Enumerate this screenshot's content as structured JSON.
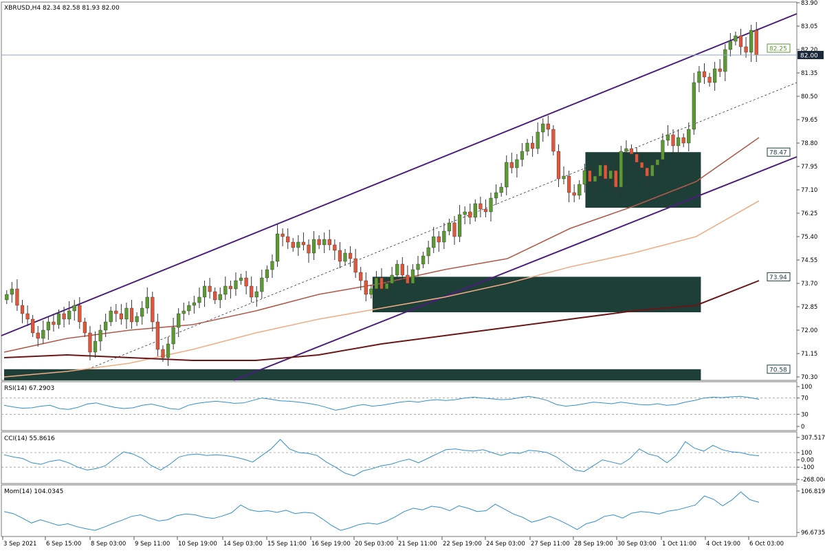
{
  "header": {
    "symbol_line": "XBRUSD,H4  82.34 82.58 81.93 82.00"
  },
  "colors": {
    "bull": "#5b9a32",
    "bear": "#e0563a",
    "channel": "#4b1e7e",
    "zone_fill": "#1d3f37",
    "ma_fast": "#b15b4a",
    "ma_mid": "#f0ad86",
    "ma_slow": "#6a1616",
    "indicator": "#2f8fcf",
    "price_line": "#8aa6c8"
  },
  "chart_data": [
    {
      "type": "candlestick",
      "title": "XBRUSD,H4",
      "ohlc_header": {
        "open": 82.34,
        "high": 82.58,
        "low": 81.93,
        "close": 82.0
      },
      "ylim": [
        70.3,
        83.9
      ],
      "y_ticks": [
        "83.90",
        "83.05",
        "82.20",
        "81.35",
        "80.50",
        "79.65",
        "78.80",
        "77.95",
        "77.10",
        "76.25",
        "75.40",
        "74.55",
        "73.70",
        "72.85",
        "72.00",
        "71.15",
        "70.30"
      ],
      "current_price": "82.00",
      "price_tags": [
        "82.25",
        "78.47",
        "73.94",
        "70.58"
      ],
      "x_labels": [
        "3 Sep 2021",
        "6 Sep 15:00",
        "8 Sep 03:00",
        "9 Sep 11:00",
        "10 Sep 19:00",
        "14 Sep 03:00",
        "15 Sep 11:00",
        "16 Sep 19:00",
        "20 Sep 03:00",
        "21 Sep 11:00",
        "22 Sep 19:00",
        "24 Sep 03:00",
        "27 Sep 11:00",
        "28 Sep 19:00",
        "30 Sep 03:00",
        "1 Oct 11:00",
        "4 Oct 19:00",
        "6 Oct 03:00"
      ],
      "closes": [
        73.3,
        73.5,
        72.9,
        72.6,
        72.4,
        71.9,
        71.7,
        72.0,
        72.3,
        72.2,
        72.6,
        72.4,
        72.7,
        72.9,
        72.3,
        71.9,
        71.2,
        71.6,
        72.0,
        72.3,
        72.7,
        72.6,
        72.4,
        72.8,
        72.3,
        72.5,
        72.8,
        73.2,
        72.3,
        71.3,
        71.0,
        71.5,
        72.1,
        72.6,
        72.7,
        72.9,
        73.0,
        73.2,
        73.6,
        73.4,
        73.1,
        73.3,
        73.6,
        73.5,
        73.8,
        73.9,
        73.6,
        73.2,
        73.4,
        73.9,
        74.2,
        74.5,
        75.5,
        75.4,
        75.2,
        75.0,
        75.2,
        75.1,
        74.8,
        75.3,
        75.1,
        75.3,
        75.1,
        74.9,
        74.5,
        74.8,
        74.6,
        74.1,
        73.8,
        73.3,
        73.5,
        73.9,
        73.5,
        73.7,
        74.0,
        74.4,
        74.0,
        73.7,
        74.2,
        74.4,
        74.7,
        75.0,
        75.4,
        75.2,
        75.6,
        75.9,
        75.4,
        76.2,
        76.3,
        76.1,
        76.6,
        76.4,
        76.3,
        76.8,
        77.0,
        77.2,
        78.1,
        77.9,
        78.2,
        78.5,
        78.8,
        78.6,
        79.2,
        79.5,
        79.3,
        78.5,
        77.5,
        77.6,
        77.0,
        76.9,
        77.3,
        77.8,
        77.4,
        77.6,
        78.0,
        77.5,
        77.8,
        77.2,
        78.5,
        78.6,
        78.4,
        78.1,
        77.9,
        77.6,
        78.0,
        78.2,
        78.9,
        79.1,
        78.7,
        79.0,
        78.8,
        79.3,
        81.0,
        81.4,
        81.2,
        81.0,
        81.5,
        81.4,
        82.2,
        82.5,
        82.7,
        82.3,
        82.1,
        82.9,
        82.0
      ],
      "moving_averages": [
        {
          "key": "ma_fast",
          "values": [
            71.2,
            71.7,
            72.0,
            72.2,
            72.7,
            73.3,
            73.7,
            74.2,
            74.6,
            75.7,
            76.5,
            77.4,
            79.0
          ]
        },
        {
          "key": "ma_mid",
          "values": [
            70.3,
            70.5,
            70.8,
            71.3,
            71.9,
            72.4,
            72.8,
            73.2,
            73.7,
            74.3,
            74.8,
            75.4,
            76.7
          ]
        },
        {
          "key": "ma_slow",
          "values": [
            71.0,
            71.1,
            71.0,
            70.9,
            70.9,
            71.1,
            71.5,
            71.8,
            72.1,
            72.4,
            72.7,
            72.9,
            73.8
          ]
        }
      ],
      "channel": {
        "upper_start": 71.8,
        "upper_end": 83.5,
        "middle_start": 70.3,
        "middle_end": 81.0,
        "lower_start": 69.6,
        "lower_end": 78.3
      },
      "zones": [
        {
          "top": 78.47,
          "bottom": 76.45,
          "from": 0.77,
          "to": 0.923
        },
        {
          "top": 73.94,
          "bottom": 72.65,
          "from": 0.488,
          "to": 0.923
        },
        {
          "top": 70.58,
          "bottom": 70.05,
          "from": 0.0,
          "to": 0.923
        }
      ]
    },
    {
      "type": "line",
      "title": "RSI(14) 67.2903",
      "y_ticks": [
        "100",
        "70",
        "30",
        "0"
      ],
      "ylim": [
        0,
        100
      ],
      "levels": [
        70,
        30
      ],
      "values": [
        52,
        48,
        45,
        46,
        50,
        52,
        44,
        42,
        47,
        55,
        58,
        52,
        47,
        44,
        46,
        52,
        55,
        50,
        44,
        42,
        52,
        57,
        60,
        62,
        60,
        57,
        58,
        64,
        70,
        67,
        63,
        62,
        60,
        57,
        53,
        47,
        40,
        44,
        50,
        54,
        50,
        52,
        56,
        60,
        62,
        60,
        64,
        66,
        64,
        66,
        70,
        72,
        70,
        68,
        66,
        67,
        71,
        74,
        70,
        64,
        54,
        50,
        52,
        56,
        60,
        58,
        56,
        60,
        57,
        54,
        53,
        56,
        52,
        54,
        60,
        64,
        70,
        72,
        71,
        73,
        74,
        71,
        67
      ]
    },
    {
      "type": "line",
      "title": "CCI(14) 55.8616",
      "y_ticks": [
        "307.5175",
        "100",
        "0.00",
        "-100",
        "-268.004"
      ],
      "ylim": [
        -268.004,
        307.5175
      ],
      "levels": [
        100,
        -100
      ],
      "values": [
        70,
        40,
        20,
        -40,
        -60,
        -20,
        0,
        -40,
        -100,
        -140,
        -120,
        -80,
        20,
        110,
        80,
        20,
        -80,
        -140,
        -60,
        40,
        70,
        80,
        60,
        70,
        60,
        40,
        10,
        -30,
        60,
        150,
        280,
        150,
        100,
        90,
        60,
        -30,
        -100,
        -180,
        -220,
        -150,
        -120,
        -80,
        -60,
        -20,
        10,
        -40,
        20,
        80,
        140,
        150,
        130,
        120,
        140,
        100,
        60,
        100,
        90,
        130,
        120,
        100,
        40,
        -50,
        -140,
        -160,
        -80,
        0,
        -30,
        -60,
        20,
        150,
        80,
        50,
        -40,
        60,
        250,
        160,
        120,
        200,
        140,
        110,
        100,
        70,
        56
      ]
    },
    {
      "type": "line",
      "title": "Mom(14) 104.0345",
      "y_ticks": [
        "106.8198",
        "96.6735"
      ],
      "ylim": [
        96.2,
        107.3
      ],
      "values": [
        101.8,
        101.3,
        100.2,
        99.0,
        99.8,
        99.1,
        98.4,
        98.8,
        98.1,
        97.6,
        97.2,
        98.0,
        98.9,
        99.7,
        100.6,
        101.0,
        100.2,
        99.5,
        99.8,
        100.8,
        101.2,
        101.0,
        100.4,
        100.1,
        100.7,
        101.5,
        103.4,
        102.2,
        101.8,
        102.0,
        101.6,
        102.1,
        101.3,
        101.6,
        101.4,
        100.0,
        98.4,
        97.2,
        97.8,
        98.6,
        99.0,
        98.7,
        99.4,
        100.5,
        101.8,
        102.6,
        102.2,
        103.1,
        102.8,
        102.0,
        103.2,
        102.6,
        101.8,
        102.0,
        103.6,
        102.4,
        101.2,
        100.4,
        99.2,
        99.8,
        100.6,
        99.7,
        98.6,
        97.4,
        98.8,
        99.4,
        100.6,
        101.0,
        100.2,
        101.4,
        101.8,
        101.6,
        101.2,
        101.9,
        102.2,
        102.8,
        103.4,
        105.6,
        104.8,
        103.2,
        104.6,
        106.6,
        104.7,
        104.03
      ]
    }
  ]
}
